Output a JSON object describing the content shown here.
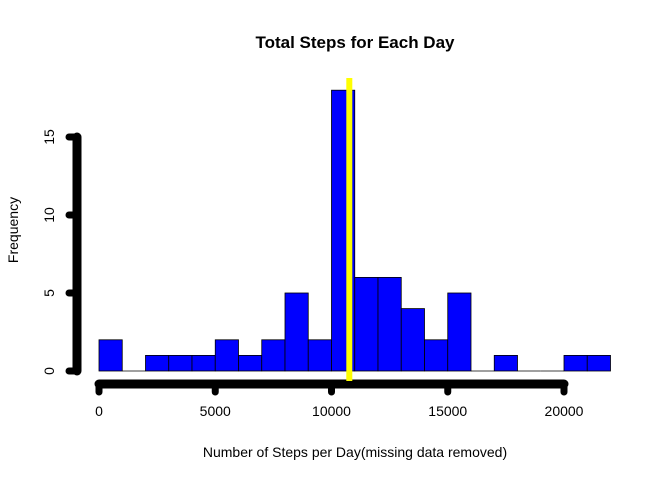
{
  "chart_data": {
    "type": "bar",
    "title": "Total Steps for Each Day",
    "xlabel": "Number of Steps per Day(missing data removed)",
    "ylabel": "Frequency",
    "xlim": [
      0,
      22000
    ],
    "ylim": [
      0,
      18
    ],
    "x_ticks": [
      0,
      5000,
      10000,
      15000,
      20000
    ],
    "y_ticks": [
      0,
      5,
      10,
      15
    ],
    "bin_width": 1000,
    "bin_starts": [
      0,
      1000,
      2000,
      3000,
      4000,
      5000,
      6000,
      7000,
      8000,
      9000,
      10000,
      11000,
      12000,
      13000,
      14000,
      15000,
      16000,
      17000,
      18000,
      19000,
      20000,
      21000
    ],
    "values": [
      2,
      0,
      1,
      1,
      1,
      2,
      1,
      2,
      5,
      2,
      18,
      6,
      6,
      4,
      2,
      5,
      0,
      1,
      0,
      0,
      1,
      1
    ],
    "mean_line": 10766,
    "colors": {
      "bars": "#0000ff",
      "bar_border": "#000000",
      "mean_line": "#ffff00",
      "axis": "#000000"
    },
    "grid": false
  }
}
